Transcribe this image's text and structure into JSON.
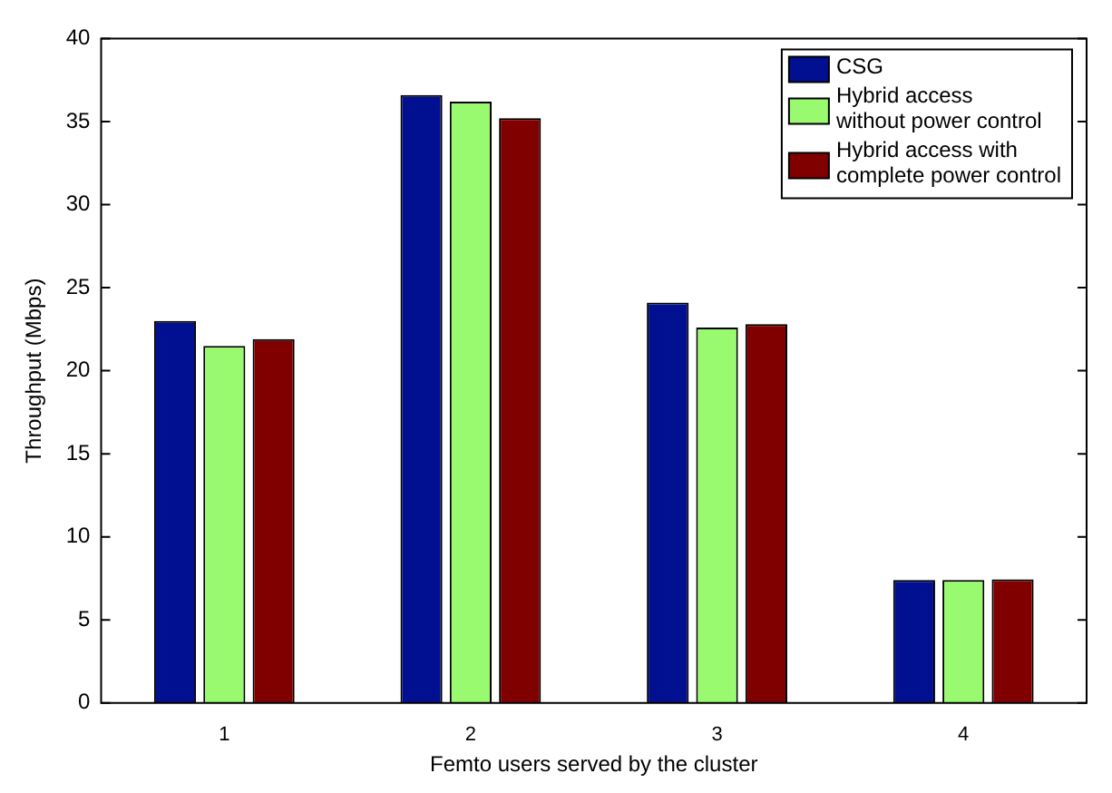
{
  "chart_data": {
    "type": "bar",
    "xlabel": "Femto users served by the cluster",
    "ylabel": "Throughput (Mbps)",
    "categories": [
      "1",
      "2",
      "3",
      "4"
    ],
    "series": [
      {
        "name": "CSG",
        "color": "#001090",
        "values": [
          23.0,
          36.6,
          24.1,
          7.4
        ]
      },
      {
        "name": "Hybrid access\nwithout power control",
        "color": "#99fa70",
        "values": [
          21.5,
          36.2,
          22.6,
          7.4
        ]
      },
      {
        "name": "Hybrid access with\ncomplete power control",
        "color": "#800000",
        "values": [
          21.9,
          35.2,
          22.8,
          7.45
        ]
      }
    ],
    "ylim": [
      0,
      40
    ],
    "yticks": [
      0,
      5,
      10,
      15,
      20,
      25,
      30,
      35,
      40
    ],
    "grid": false,
    "legend": "top right"
  }
}
